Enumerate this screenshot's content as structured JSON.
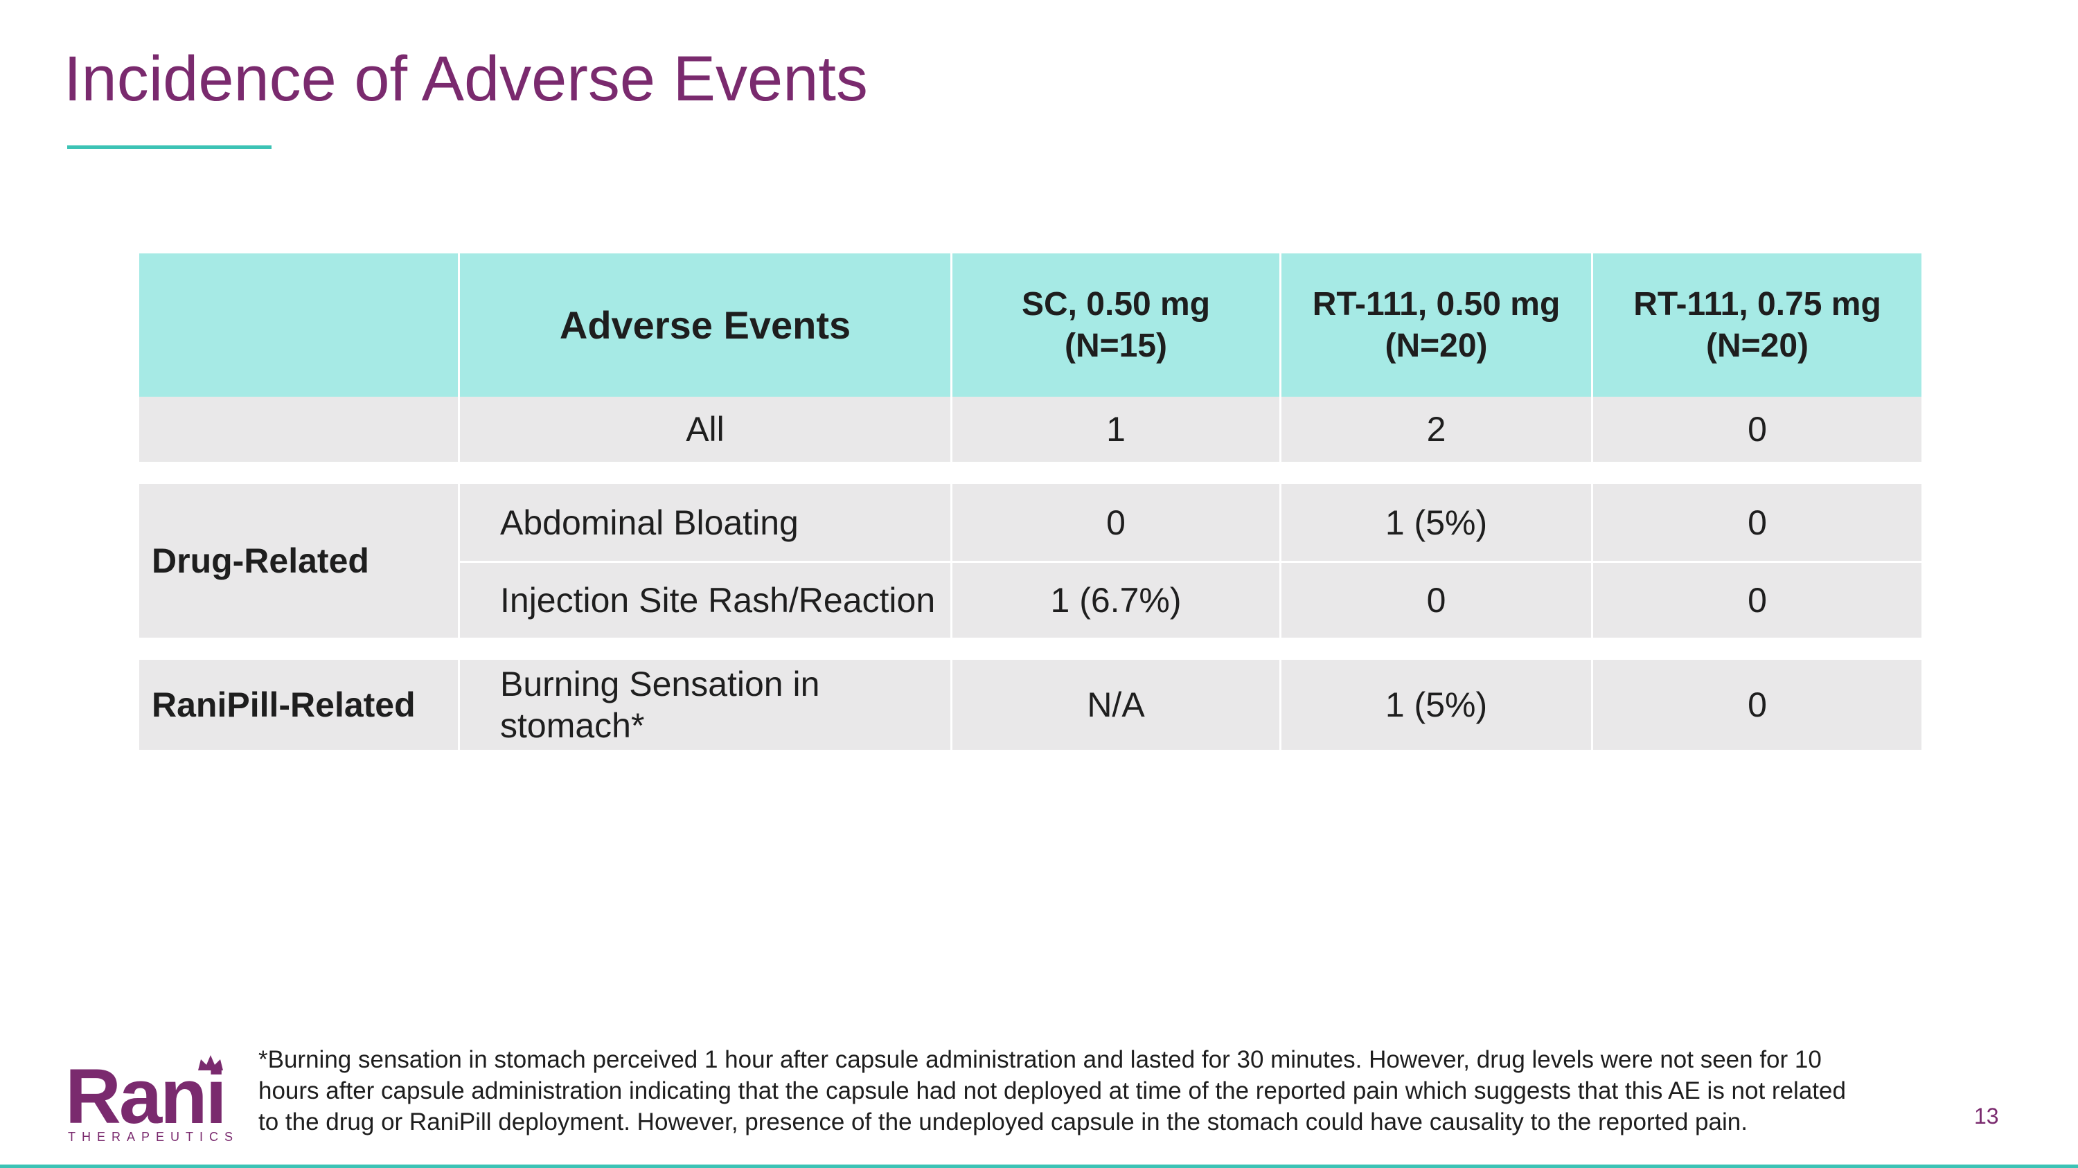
{
  "slide": {
    "title": "Incidence of Adverse Events",
    "page_number": "13",
    "accent_color": "#7a2a6e",
    "rule_color": "#3cc3b5"
  },
  "table": {
    "header": {
      "group": "",
      "event": "Adverse Events",
      "col1_line1": "SC, 0.50 mg",
      "col1_line2": "(N=15)",
      "col2_line1": "RT-111, 0.50 mg",
      "col2_line2": "(N=20)",
      "col3_line1": "RT-111, 0.75 mg",
      "col3_line2": "(N=20)"
    },
    "rows": [
      {
        "group": "",
        "event": "All",
        "sc": "1",
        "rt050": "2",
        "rt075": "0"
      },
      {
        "group": "Drug-Related",
        "event": "Abdominal Bloating",
        "sc": "0",
        "rt050": "1 (5%)",
        "rt075": "0"
      },
      {
        "group": "",
        "event": "Injection Site Rash/Reaction",
        "sc": "1 (6.7%)",
        "rt050": "0",
        "rt075": "0"
      },
      {
        "group": "RaniPill-Related",
        "event_line1": "Burning Sensation in",
        "event_line2": "stomach*",
        "sc": "N/A",
        "rt050": "1 (5%)",
        "rt075": "0"
      }
    ],
    "header_bg": "#a6eae5",
    "row_bg": "#e9e8e9"
  },
  "logo": {
    "word": "Rani",
    "sub": "THERAPEUTICS",
    "icon": "crown-icon"
  },
  "footnote": {
    "line1": "*Burning sensation in stomach perceived 1 hour after capsule administration and lasted for 30 minutes. However, drug levels were not seen for 10",
    "line2": "hours after capsule administration indicating that the capsule had not deployed at time of the reported pain which suggests that this AE is not related",
    "line3": "to the drug or RaniPill deployment. However,  presence of the undeployed capsule in the stomach could have causality to the reported pain."
  }
}
